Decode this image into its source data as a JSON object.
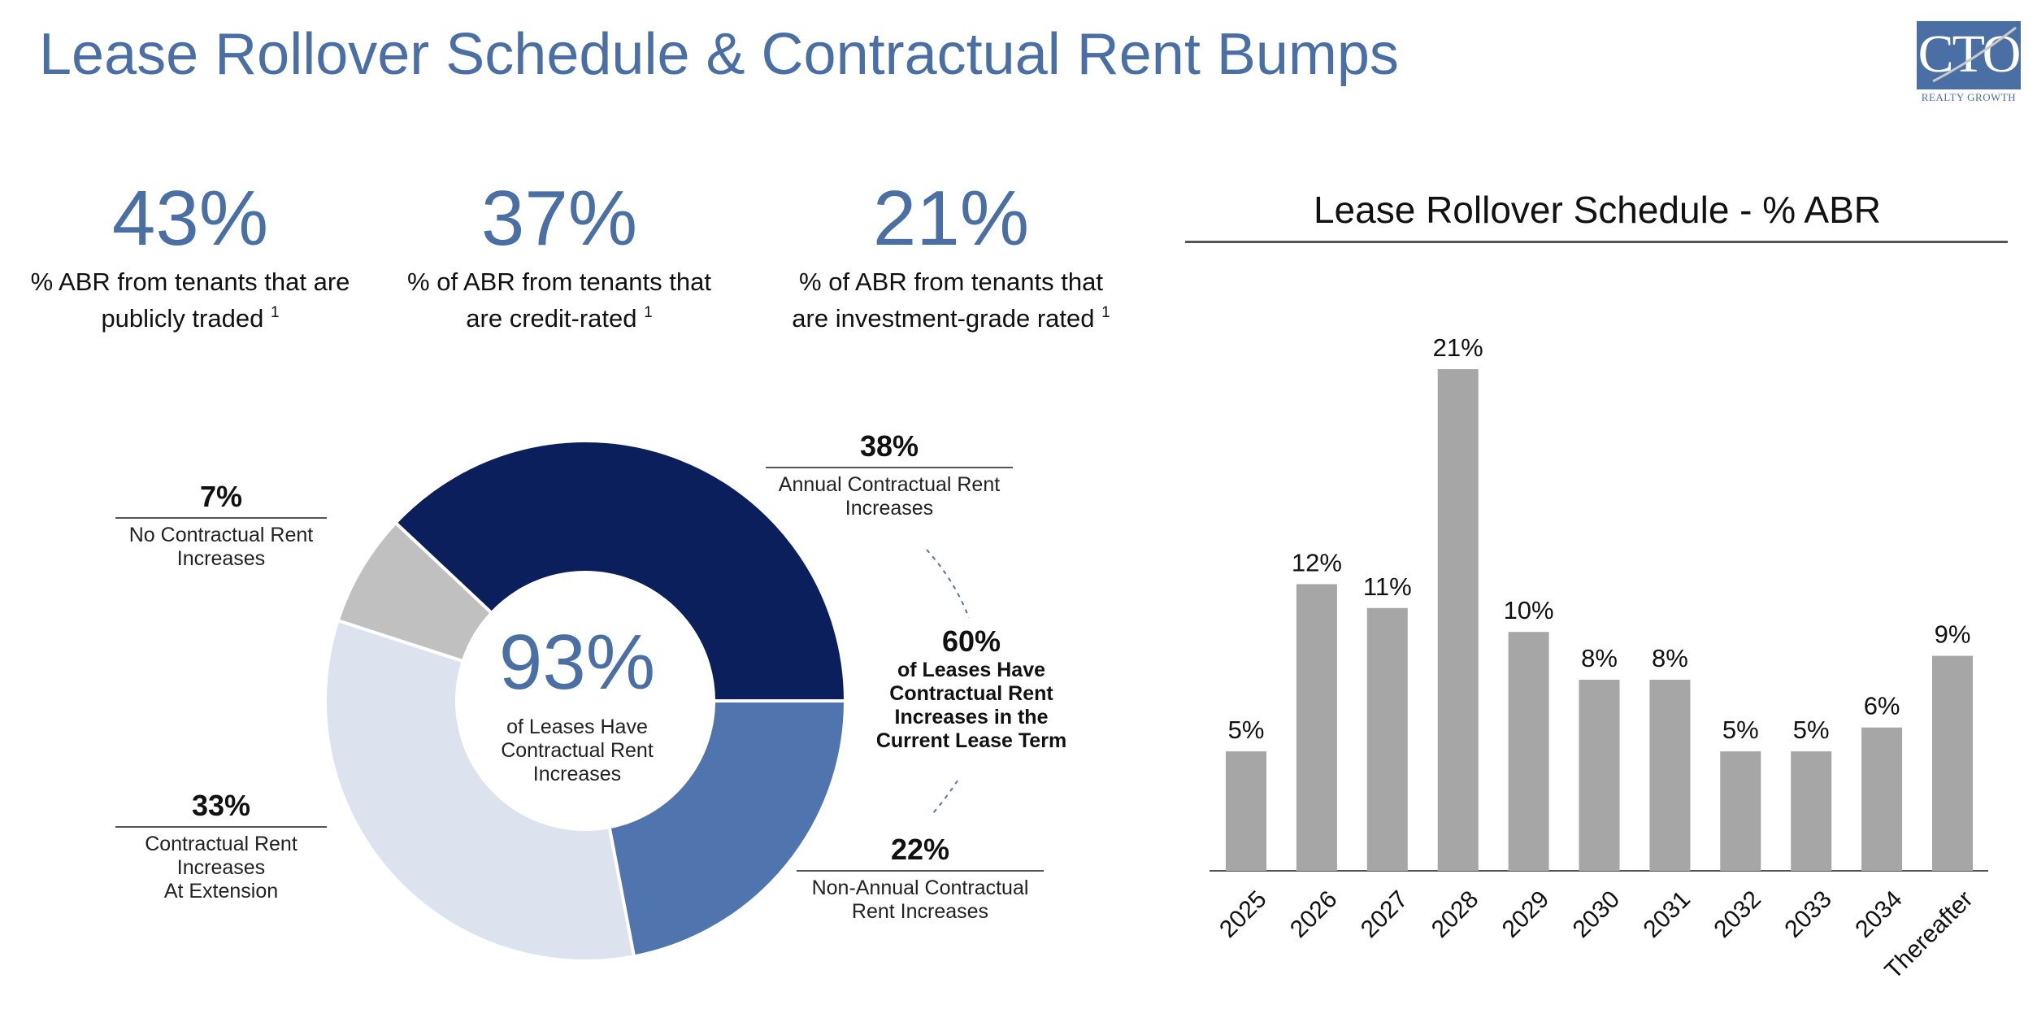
{
  "title": "Lease Rollover Schedule & Contractual Rent Bumps",
  "logo": {
    "text": "CTO",
    "subtitle": "REALTY GROWTH",
    "color": "#4a6fa5"
  },
  "stats": [
    {
      "value": "43%",
      "line1": "% ABR from tenants that are",
      "line2": "publicly traded",
      "note": "1"
    },
    {
      "value": "37%",
      "line1": "% of ABR from tenants that",
      "line2": "are credit-rated",
      "note": "1"
    },
    {
      "value": "21%",
      "line1": "% of ABR from tenants that",
      "line2": "are investment-grade rated",
      "note": "1"
    }
  ],
  "donut": {
    "center_value": "93%",
    "center_line1": "of Leases Have",
    "center_line2": "Contractual Rent",
    "center_line3": "Increases",
    "slices": [
      {
        "label_pct": "38%",
        "line1": "Annual Contractual Rent",
        "line2": "Increases",
        "line3": "",
        "value": 38,
        "color": "#0a1f5c"
      },
      {
        "label_pct": "22%",
        "line1": "Non-Annual Contractual",
        "line2": "Rent Increases",
        "line3": "",
        "value": 22,
        "color": "#5075ae"
      },
      {
        "label_pct": "33%",
        "line1": "Contractual Rent",
        "line2": "Increases",
        "line3": "At Extension",
        "value": 33,
        "color": "#dce3ef"
      },
      {
        "label_pct": "7%",
        "line1": "No Contractual Rent",
        "line2": "Increases",
        "line3": "",
        "value": 7,
        "color": "#c0c0c0"
      }
    ],
    "group_callout": {
      "pct": "60%",
      "line1": "of Leases Have",
      "line2": "Contractual Rent",
      "line3": "Increases in the",
      "line4": "Current Lease Term"
    }
  },
  "chart_data": {
    "type": "bar",
    "title": "Lease Rollover Schedule - % ABR",
    "categories": [
      "2025",
      "2026",
      "2027",
      "2028",
      "2029",
      "2030",
      "2031",
      "2032",
      "2033",
      "2034",
      "Thereafter"
    ],
    "values": [
      5,
      12,
      11,
      21,
      10,
      8,
      8,
      5,
      5,
      6,
      9
    ],
    "data_labels": [
      "5%",
      "12%",
      "11%",
      "21%",
      "10%",
      "8%",
      "8%",
      "5%",
      "5%",
      "6%",
      "9%"
    ],
    "ylim": [
      0,
      21
    ],
    "bar_color": "#a6a6a6",
    "grid": false,
    "legend": "none"
  }
}
